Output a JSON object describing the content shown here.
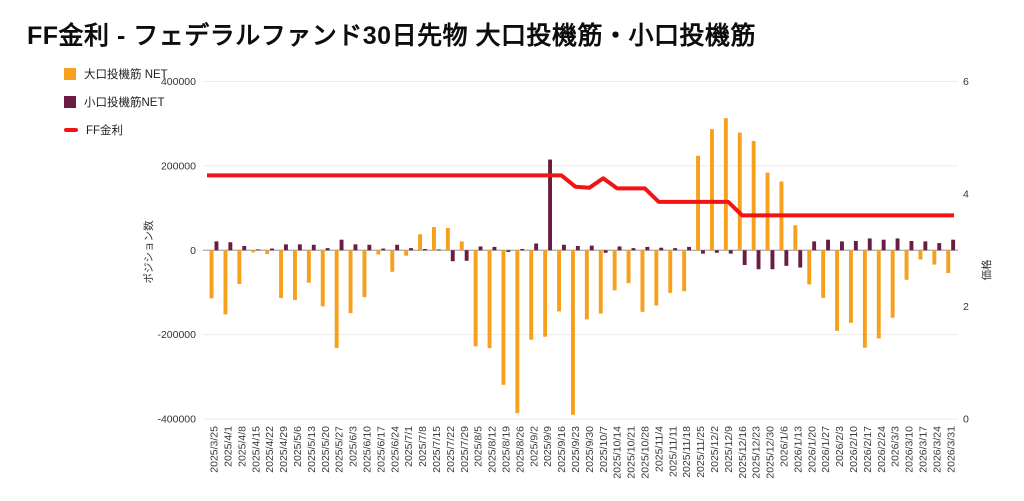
{
  "page": {
    "title": "FF金利 - フェデラルファンド30日先物 大口投機筋・小口投機筋"
  },
  "legend": {
    "items": [
      {
        "label": "大口投機筋 NET",
        "color": "#f7a01b",
        "shape": "square"
      },
      {
        "label": "小口投機筋NET",
        "color": "#6b1c42",
        "shape": "square"
      },
      {
        "label": "FF金利",
        "color": "#f21414",
        "shape": "line"
      }
    ]
  },
  "chart_data": {
    "type": "combo",
    "grid": true,
    "legend_position": "top-left",
    "categories": [
      "2025/3/25",
      "2025/4/1",
      "2025/4/8",
      "2025/4/15",
      "2025/4/22",
      "2025/4/29",
      "2025/5/6",
      "2025/5/13",
      "2025/5/20",
      "2025/5/27",
      "2025/6/3",
      "2025/6/10",
      "2025/6/17",
      "2025/6/24",
      "2025/7/1",
      "2025/7/8",
      "2025/7/15",
      "2025/7/22",
      "2025/7/29",
      "2025/8/5",
      "2025/8/12",
      "2025/8/19",
      "2025/8/26",
      "2025/9/2",
      "2025/9/9",
      "2025/9/16",
      "2025/9/23",
      "2025/9/30",
      "2025/10/7",
      "2025/10/14",
      "2025/10/21",
      "2025/10/28",
      "2025/11/4",
      "2025/11/11",
      "2025/11/18",
      "2025/11/25",
      "2025/12/2",
      "2025/12/9",
      "2025/12/16",
      "2025/12/23",
      "2025/12/30",
      "2026/1/6",
      "2026/1/13",
      "2026/1/20",
      "2026/1/27",
      "2026/2/3",
      "2026/2/10",
      "2026/2/17",
      "2026/2/24",
      "2026/3/3",
      "2026/3/10",
      "2026/3/17",
      "2026/3/24",
      "2026/3/31"
    ],
    "series": [
      {
        "name": "大口投機筋 NET",
        "type": "bar",
        "yaxis": "left",
        "color": "#f7a01b",
        "values": [
          -114000,
          -152000,
          -80000,
          -5000,
          -9000,
          -113000,
          -118000,
          -77000,
          -133000,
          -232000,
          -149000,
          -111000,
          -10000,
          -51000,
          -13000,
          38000,
          55000,
          53000,
          21000,
          -228000,
          -232000,
          -319000,
          -386000,
          -212000,
          -205000,
          -145000,
          -390000,
          -164000,
          -150000,
          -95000,
          -78000,
          -146000,
          -131000,
          -101000,
          -97000,
          224000,
          287000,
          313000,
          279000,
          259000,
          184000,
          163000,
          59000,
          -81000,
          -113000,
          -191000,
          -172000,
          -231000,
          -209000,
          -160000,
          -70000,
          -22000,
          -34000,
          -54000
        ]
      },
      {
        "name": "小口投機筋NET",
        "type": "bar",
        "yaxis": "left",
        "color": "#6b1c42",
        "values": [
          21000,
          19000,
          10000,
          2000,
          4000,
          14000,
          14000,
          13000,
          5000,
          25000,
          14000,
          13000,
          4000,
          13000,
          5000,
          3000,
          2000,
          -26000,
          -25000,
          9000,
          8000,
          -4000,
          3000,
          16000,
          215000,
          13000,
          10000,
          11000,
          -6000,
          9000,
          5000,
          8000,
          6000,
          5000,
          8000,
          -8000,
          -6000,
          -8000,
          -35000,
          -45000,
          -45000,
          -37000,
          -41000,
          21000,
          25000,
          21000,
          22000,
          28000,
          25000,
          28000,
          22000,
          21000,
          17000,
          25000
        ]
      },
      {
        "name": "FF金利",
        "type": "line",
        "yaxis": "right",
        "color": "#f21414",
        "values": [
          4.33,
          4.33,
          4.33,
          4.33,
          4.33,
          4.33,
          4.33,
          4.33,
          4.33,
          4.33,
          4.33,
          4.33,
          4.33,
          4.33,
          4.33,
          4.33,
          4.33,
          4.33,
          4.33,
          4.33,
          4.33,
          4.33,
          4.33,
          4.33,
          4.33,
          4.33,
          4.13,
          4.11,
          4.28,
          4.1,
          4.1,
          4.1,
          3.86,
          3.86,
          3.86,
          3.86,
          3.86,
          3.86,
          3.62,
          3.62,
          3.62,
          3.62,
          3.62,
          3.62,
          3.62,
          3.62,
          3.62,
          3.62,
          3.62,
          3.62,
          3.62,
          3.62,
          3.62,
          3.62
        ]
      }
    ],
    "axes": {
      "left": {
        "title": "ポジション数",
        "min": -400000,
        "max": 400000,
        "ticks": [
          400000,
          200000,
          0,
          -200000,
          -400000
        ]
      },
      "right": {
        "title": "価格",
        "min": 0,
        "max": 6,
        "ticks": [
          6,
          4,
          2,
          0
        ]
      }
    }
  }
}
